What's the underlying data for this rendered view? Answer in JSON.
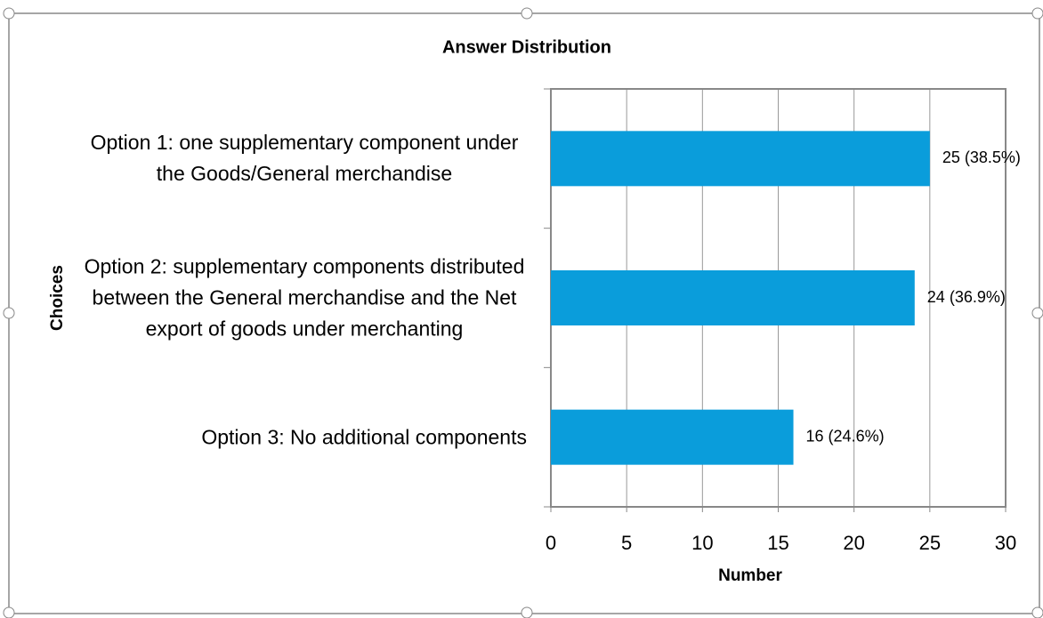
{
  "chart_data": {
    "type": "bar",
    "orientation": "horizontal",
    "title": "Answer Distribution",
    "x_label": "Number",
    "y_label": "Choices",
    "categories": [
      "Option 1: one supplementary component under the Goods/General merchandise",
      "Option 2: supplementary components distributed between the General merchandise and the Net export of goods under merchanting",
      "Option 3: No additional components"
    ],
    "values": [
      25,
      24,
      16
    ],
    "value_labels": [
      "25 (38.5%)",
      "24 (36.9%)",
      "16 (24.6%)"
    ],
    "color": "#0a9ddb",
    "xlim": [
      0,
      30
    ],
    "xticks": [
      0,
      5,
      10,
      15,
      20,
      25,
      30
    ],
    "grid": true
  }
}
